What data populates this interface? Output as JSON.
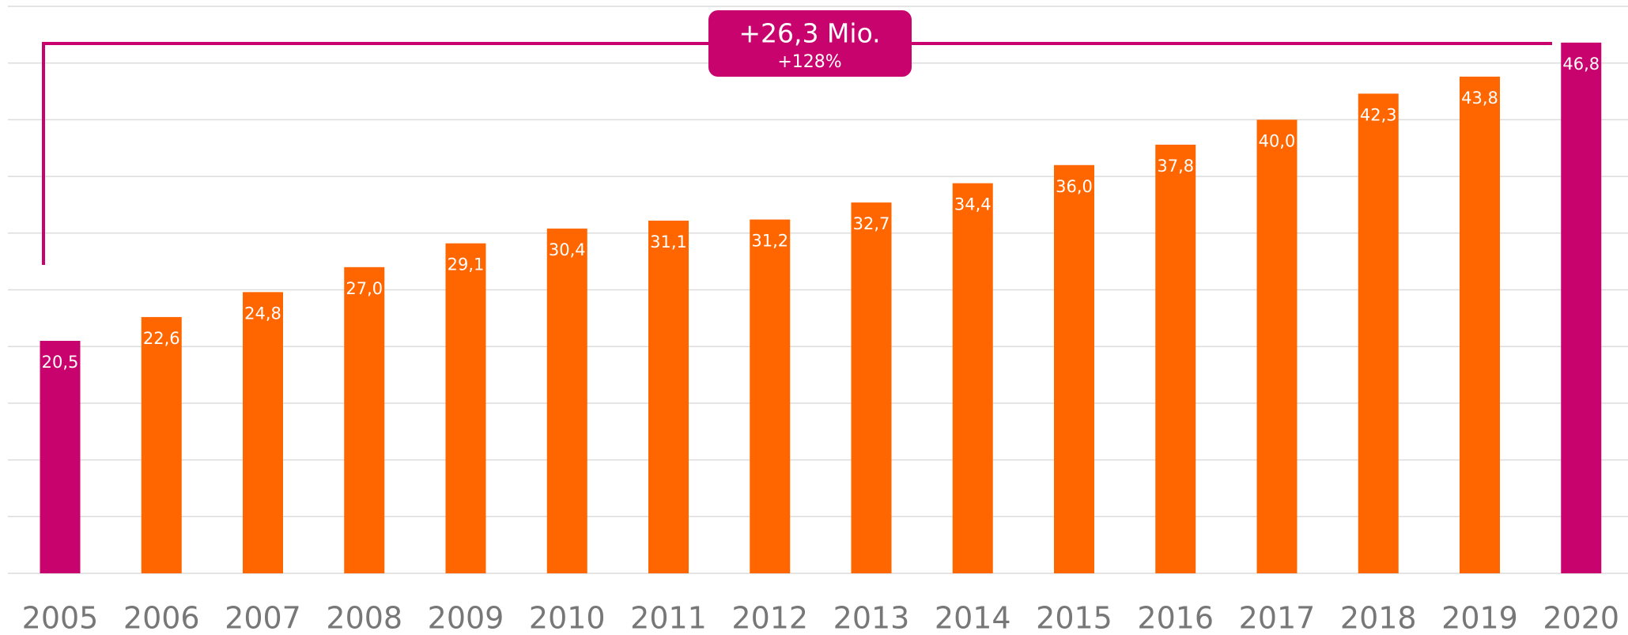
{
  "chart_data": {
    "type": "bar",
    "categories": [
      "2005",
      "2006",
      "2007",
      "2008",
      "2009",
      "2010",
      "2011",
      "2012",
      "2013",
      "2014",
      "2015",
      "2016",
      "2017",
      "2018",
      "2019",
      "2020"
    ],
    "values": [
      20.5,
      22.6,
      24.8,
      27.0,
      29.1,
      30.4,
      31.1,
      31.2,
      32.7,
      34.4,
      36.0,
      37.8,
      40.0,
      42.3,
      43.8,
      46.8
    ],
    "value_labels": [
      "20,5",
      "22,6",
      "24,8",
      "27,0",
      "29,1",
      "30,4",
      "31,1",
      "31,2",
      "32,7",
      "34,4",
      "36,0",
      "37,8",
      "40,0",
      "42,3",
      "43,8",
      "46,8"
    ],
    "colors": [
      "#c8036e",
      "#ff6600",
      "#ff6600",
      "#ff6600",
      "#ff6600",
      "#ff6600",
      "#ff6600",
      "#ff6600",
      "#ff6600",
      "#ff6600",
      "#ff6600",
      "#ff6600",
      "#ff6600",
      "#ff6600",
      "#ff6600",
      "#c8036e"
    ],
    "ylim": [
      0,
      50
    ],
    "yticks": [
      0,
      5,
      10,
      15,
      20,
      25,
      30,
      35,
      40,
      45,
      50
    ],
    "grid": true,
    "annotation": {
      "text": "+26,3 Mio.",
      "subtext": "+128%",
      "color": "#c8036e"
    }
  }
}
